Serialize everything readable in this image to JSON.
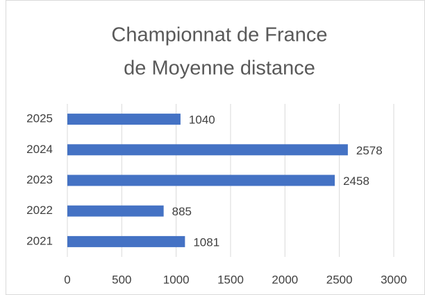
{
  "chart_data": {
    "type": "bar",
    "orientation": "horizontal",
    "title": [
      "Championnat de France",
      "de Moyenne distance"
    ],
    "categories": [
      "2021",
      "2022",
      "2023",
      "2024",
      "2025"
    ],
    "values": [
      1081,
      885,
      2458,
      2578,
      1040
    ],
    "color": "#4472c4",
    "xlim": [
      0,
      3000
    ],
    "xticks": [
      0,
      500,
      1000,
      1500,
      2000,
      2500,
      3000
    ],
    "grid": true,
    "data_labels": true
  }
}
